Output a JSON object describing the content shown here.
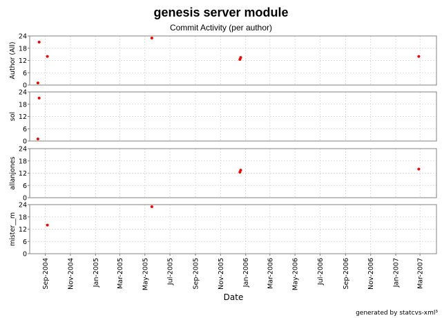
{
  "chart_data": {
    "type": "scatter",
    "title": "genesis server module",
    "subtitle": "Commit Activity (per author)",
    "xlabel": "Date",
    "footer": "generated by statcvs-xml³",
    "grid": true,
    "marker_color": "#ff0000",
    "x_ticks": [
      "Sep-2004",
      "Nov-2004",
      "Jan-2005",
      "Mar-2005",
      "May-2005",
      "Jul-2005",
      "Sep-2005",
      "Nov-2005",
      "Jan-2006",
      "Mar-2006",
      "May-2006",
      "Jul-2006",
      "Sep-2006",
      "Nov-2006",
      "Jan-2007",
      "Mar-2007"
    ],
    "xlim": [
      "2004-07-25",
      "2007-04-10"
    ],
    "ylim": [
      0,
      24
    ],
    "y_ticks": [
      0,
      6,
      12,
      18,
      24
    ],
    "panels": [
      {
        "ylabel": "Author (All)",
        "points": [
          {
            "x": "2004-08-14",
            "y": 1
          },
          {
            "x": "2004-08-17",
            "y": 21
          },
          {
            "x": "2004-09-06",
            "y": 14
          },
          {
            "x": "2005-05-18",
            "y": 23
          },
          {
            "x": "2005-12-18",
            "y": 12.5
          },
          {
            "x": "2005-12-20",
            "y": 13.5
          },
          {
            "x": "2007-02-26",
            "y": 14
          }
        ]
      },
      {
        "ylabel": "sol",
        "points": [
          {
            "x": "2004-08-14",
            "y": 1
          },
          {
            "x": "2004-08-17",
            "y": 21
          }
        ]
      },
      {
        "ylabel": "allanjones",
        "points": [
          {
            "x": "2005-12-18",
            "y": 12.5
          },
          {
            "x": "2005-12-20",
            "y": 13.5
          },
          {
            "x": "2007-02-26",
            "y": 14
          }
        ]
      },
      {
        "ylabel": "mister__m",
        "points": [
          {
            "x": "2004-09-06",
            "y": 14
          },
          {
            "x": "2005-05-18",
            "y": 23
          }
        ]
      }
    ]
  }
}
